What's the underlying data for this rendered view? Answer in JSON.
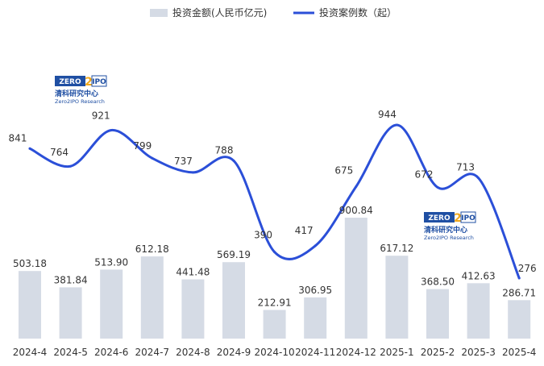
{
  "chart_data": {
    "type": "bar+line",
    "title": "",
    "xlabel": "",
    "ylabel": "",
    "categories": [
      "2024-4",
      "2024-5",
      "2024-6",
      "2024-7",
      "2024-8",
      "2024-9",
      "2024-10",
      "2024-11",
      "2024-12",
      "2025-1",
      "2025-2",
      "2025-3",
      "2025-4"
    ],
    "series": [
      {
        "name": "投资金额(人民币亿元)",
        "type": "bar",
        "values": [
          503.18,
          381.84,
          513.9,
          612.18,
          441.48,
          569.19,
          212.91,
          306.95,
          900.84,
          617.12,
          368.5,
          412.63,
          286.71
        ],
        "labels": [
          "503.18",
          "381.84",
          "513.90",
          "612.18",
          "441.48",
          "569.19",
          "212.91",
          "306.95",
          "900.84",
          "617.12",
          "368.50",
          "412.63",
          "286.71"
        ]
      },
      {
        "name": "投资案例数（起）",
        "type": "line",
        "values": [
          841,
          764,
          921,
          799,
          737,
          788,
          390,
          417,
          675,
          944,
          672,
          713,
          276
        ],
        "labels": [
          "841",
          "764",
          "921",
          "799",
          "737",
          "788",
          "390",
          "417",
          "675",
          "944",
          "672",
          "713",
          "276"
        ]
      }
    ],
    "legend": "top-center",
    "grid": false,
    "colors": {
      "bar": "#d5dbe5",
      "line": "#2b4fd8"
    }
  },
  "watermark": {
    "brand_left": "ZERO",
    "brand_digit": "2",
    "brand_right": "IPO",
    "cn": "清科研究中心",
    "en": "Zero2IPO Research",
    "colors": {
      "blue": "#1f4fa3",
      "gold": "#f0a81c"
    }
  }
}
